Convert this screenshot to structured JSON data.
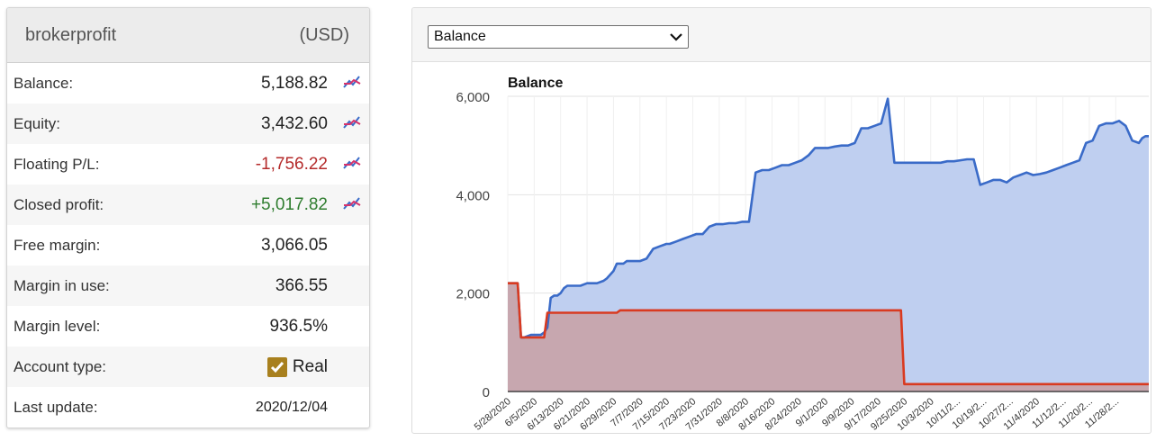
{
  "account": {
    "name": "brokerprofit",
    "currency": "(USD)",
    "rows": [
      {
        "label": "Balance:",
        "value": "5,188.82",
        "tone": "normal",
        "has_chart": true
      },
      {
        "label": "Equity:",
        "value": "3,432.60",
        "tone": "normal",
        "has_chart": true
      },
      {
        "label": "Floating P/L:",
        "value": "-1,756.22",
        "tone": "neg",
        "has_chart": true
      },
      {
        "label": "Closed profit:",
        "value": "+5,017.82",
        "tone": "pos",
        "has_chart": true
      },
      {
        "label": "Free margin:",
        "value": "3,066.05",
        "tone": "normal",
        "has_chart": false
      },
      {
        "label": "Margin in use:",
        "value": "366.55",
        "tone": "normal",
        "has_chart": false
      },
      {
        "label": "Margin level:",
        "value": "936.5%",
        "tone": "normal",
        "has_chart": false
      }
    ],
    "account_type": {
      "label": "Account type:",
      "value": "Real",
      "checked": true
    },
    "last_update": {
      "label": "Last update:",
      "value": "2020/12/04"
    }
  },
  "chart_selector": {
    "selected": "Balance"
  },
  "chart_data": {
    "type": "area",
    "title": "Balance",
    "y_ticks": [
      "0",
      "2,000",
      "4,000",
      "6,000"
    ],
    "ylim": [
      0,
      6000
    ],
    "x_tick_labels": [
      "5/28/2020",
      "6/5/2020",
      "6/13/2020",
      "6/21/2020",
      "6/29/2020",
      "7/7/2020",
      "7/15/2020",
      "7/23/2020",
      "7/31/2020",
      "8/8/2020",
      "8/16/2020",
      "8/24/2020",
      "9/1/2020",
      "9/9/2020",
      "9/17/2020",
      "9/25/2020",
      "10/3/2020",
      "10/11/2...",
      "10/19/2...",
      "10/27/2...",
      "11/4/2020",
      "11/12/2...",
      "11/20/2...",
      "11/28/2..."
    ],
    "x_range_days": [
      0,
      194
    ],
    "colors": {
      "balance_fill": "#bfcff0",
      "balance_line": "#3a6bc8",
      "second_fill": "#c7a4ab",
      "second_line": "#d93a20"
    },
    "series": [
      {
        "x": [
          0,
          2,
          3,
          4,
          5,
          7,
          10,
          11,
          12,
          13,
          14,
          15,
          16,
          17,
          18,
          19,
          20,
          22,
          24,
          25,
          27,
          29,
          30,
          32,
          33,
          34,
          35,
          36,
          37,
          38,
          40,
          42,
          44,
          46,
          48,
          49,
          51,
          53,
          55,
          57,
          59,
          61,
          63,
          65,
          67,
          69,
          71,
          73,
          75,
          77,
          79,
          81,
          83,
          85,
          87,
          89,
          91,
          93,
          95,
          97,
          99,
          101,
          103,
          105,
          107,
          109,
          111,
          113,
          115,
          117,
          119,
          121,
          123,
          125,
          127,
          129,
          131,
          133,
          135,
          137,
          139,
          141,
          143,
          145,
          147,
          149,
          151,
          153,
          155,
          157,
          159,
          161,
          163,
          165,
          167,
          169,
          171,
          173,
          175,
          177,
          179,
          181,
          183,
          185,
          187,
          189,
          191,
          192,
          193,
          194
        ],
        "values": [
          2200,
          2200,
          2200,
          1100,
          1100,
          1150,
          1150,
          1200,
          1300,
          1900,
          1950,
          1950,
          2000,
          2100,
          2150,
          2150,
          2150,
          2150,
          2200,
          2200,
          2200,
          2250,
          2300,
          2450,
          2600,
          2600,
          2600,
          2650,
          2650,
          2650,
          2650,
          2700,
          2900,
          2950,
          3000,
          3000,
          3050,
          3100,
          3150,
          3200,
          3200,
          3350,
          3400,
          3400,
          3420,
          3420,
          3450,
          3450,
          4450,
          4500,
          4500,
          4550,
          4600,
          4600,
          4650,
          4700,
          4800,
          4950,
          4950,
          4950,
          4980,
          5000,
          5000,
          5050,
          5350,
          5350,
          5400,
          5450,
          5950,
          4650,
          4650,
          4650,
          4650,
          4650,
          4650,
          4650,
          4650,
          4680,
          4680,
          4700,
          4720,
          4720,
          4200,
          4250,
          4300,
          4300,
          4250,
          4350,
          4400,
          4450,
          4400,
          4420,
          4450,
          4500,
          4550,
          4600,
          4650,
          4700,
          5050,
          5100,
          5400,
          5450,
          5450,
          5500,
          5400,
          5100,
          5050,
          5150,
          5188.82,
          5188.82
        ],
        "color": "#3a6bc8"
      },
      {
        "x": [
          0,
          2,
          3,
          4,
          5,
          11,
          12,
          13,
          19,
          20,
          33,
          34,
          35,
          36,
          37,
          38,
          40,
          60,
          61,
          62,
          119,
          120,
          121,
          122,
          194
        ],
        "values": [
          2200,
          2200,
          2200,
          1100,
          1100,
          1100,
          1600,
          1600,
          1600,
          1600,
          1600,
          1650,
          1650,
          1650,
          1650,
          1650,
          1650,
          1650,
          1650,
          1650,
          1650,
          150,
          150,
          150,
          150
        ],
        "color": "#d93a20"
      }
    ]
  }
}
